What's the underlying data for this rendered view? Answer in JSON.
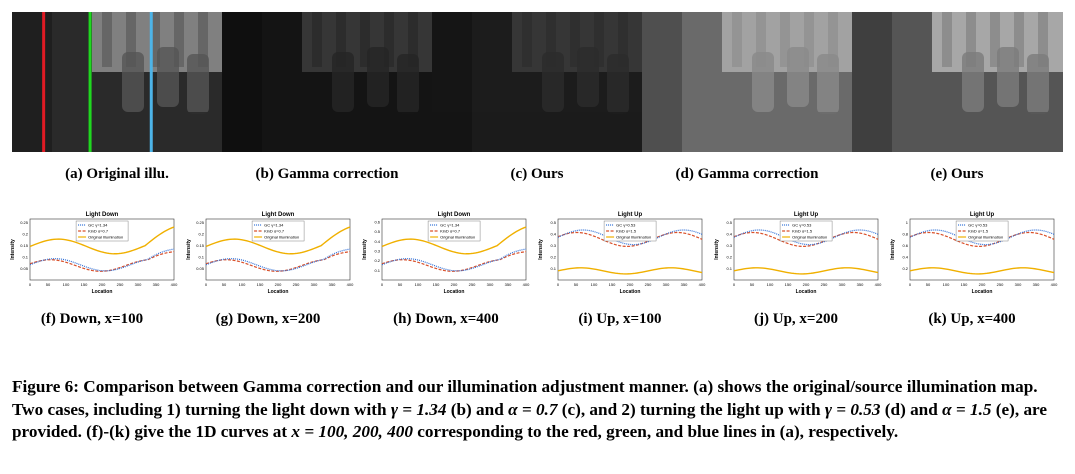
{
  "figure": {
    "images": [
      {
        "id": "a",
        "label": "(a) Original illu.",
        "tone": "#2a2a2a",
        "lines": [
          {
            "x": 0.15,
            "color": "#e01b24"
          },
          {
            "x": 0.37,
            "color": "#1fd81f"
          },
          {
            "x": 0.66,
            "color": "#4db4e8"
          }
        ]
      },
      {
        "id": "b",
        "label": "(b) Gamma correction",
        "tone": "#141414",
        "lines": []
      },
      {
        "id": "c",
        "label": "(c) Ours",
        "tone": "#1c1c1c",
        "lines": []
      },
      {
        "id": "d",
        "label": "(d) Gamma correction",
        "tone": "#6a6a6a",
        "lines": []
      },
      {
        "id": "e",
        "label": "(e) Ours",
        "tone": "#555555",
        "lines": []
      }
    ],
    "plots": [
      {
        "id": "f",
        "label": "(f) Down, x=100",
        "title": "Light Down",
        "legend": [
          "GC γ=1.34",
          "KinD α=0.7",
          "Original Illumination"
        ],
        "xticks": [
          "0",
          "50",
          "100",
          "150",
          "200",
          "250",
          "300",
          "350",
          "400"
        ],
        "yticks": [
          "0.05",
          "0.1",
          "0.15",
          "0.2",
          "0.25"
        ]
      },
      {
        "id": "g",
        "label": "(g) Down, x=200",
        "title": "Light Down",
        "legend": [
          "GC γ=1.34",
          "KinD α=0.7",
          "Original Illumination"
        ],
        "xticks": [
          "0",
          "50",
          "100",
          "150",
          "200",
          "250",
          "300",
          "350",
          "400"
        ],
        "yticks": [
          "0.05",
          "0.1",
          "0.15",
          "0.2",
          "0.25"
        ]
      },
      {
        "id": "h",
        "label": "(h) Down, x=400",
        "title": "Light Down",
        "legend": [
          "GC γ=1.34",
          "KinD α=0.7",
          "Original Illumination"
        ],
        "xticks": [
          "0",
          "50",
          "100",
          "150",
          "200",
          "250",
          "300",
          "350",
          "400"
        ],
        "yticks": [
          "0.1",
          "0.2",
          "0.3",
          "0.4",
          "0.5",
          "0.6"
        ]
      },
      {
        "id": "i",
        "label": "(i) Up, x=100",
        "title": "Light Up",
        "legend": [
          "GC γ=0.53",
          "KinD α=1.5",
          "Original Illumination"
        ],
        "xticks": [
          "0",
          "50",
          "100",
          "150",
          "200",
          "250",
          "300",
          "350",
          "400"
        ],
        "yticks": [
          "0.1",
          "0.2",
          "0.3",
          "0.4",
          "0.5"
        ]
      },
      {
        "id": "j",
        "label": "(j) Up, x=200",
        "title": "Light Up",
        "legend": [
          "GC γ=0.53",
          "KinD α=1.5",
          "Original Illumination"
        ],
        "xticks": [
          "0",
          "50",
          "100",
          "150",
          "200",
          "250",
          "300",
          "350",
          "400"
        ],
        "yticks": [
          "0.1",
          "0.2",
          "0.3",
          "0.4",
          "0.5"
        ]
      },
      {
        "id": "k",
        "label": "(k) Up, x=400",
        "title": "Light Up",
        "legend": [
          "GC γ=0.53",
          "KinD α=1.5",
          "Original Illumination"
        ],
        "xticks": [
          "0",
          "50",
          "100",
          "150",
          "200",
          "250",
          "300",
          "350",
          "400"
        ],
        "yticks": [
          "0.2",
          "0.4",
          "0.6",
          "0.8",
          "1"
        ]
      }
    ],
    "axis_labels": {
      "x": "Location",
      "y": "Intensity"
    },
    "series_colors": {
      "gc": "#2f6fd6",
      "kind": "#d9502a",
      "orig": "#f0b000"
    }
  },
  "caption": {
    "figure_label": "Figure 6:",
    "part1": "Comparison between Gamma correction and our illumination adjustment manner. (a) shows the original/source illumination map. Two cases, including 1) turning the light down with ",
    "gamma1": "γ = 1.34",
    "part2": " (b) and ",
    "alpha1": "α = 0.7",
    "part3": " (c), and 2) turning the light up with ",
    "gamma2": "γ = 0.53",
    "part4": " (d) and ",
    "alpha2": "α = 1.5",
    "part5": " (e), are provided. (f)-(k) give the 1D curves at ",
    "xvals": "x = 100, 200, 400",
    "part6": " corresponding to the red, green, and blue lines in (a), respectively."
  }
}
